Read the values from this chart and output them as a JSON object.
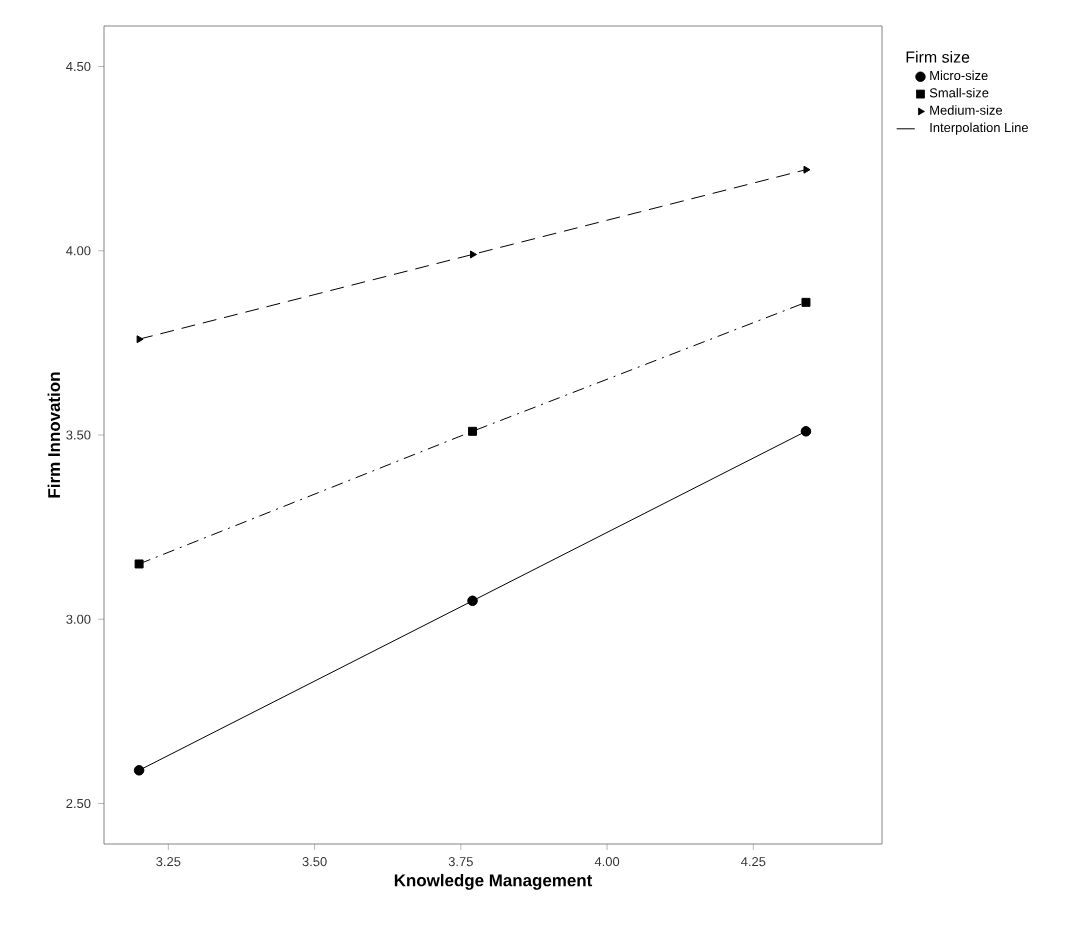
{
  "chart_data": {
    "type": "line",
    "xlabel": "Knowledge Management",
    "ylabel": "Firm Innovation",
    "legend_title": "Firm size",
    "legend": "top right",
    "xlim": [
      3.14,
      4.47
    ],
    "xticks": [
      {
        "value": 3.25,
        "label": "3.25"
      },
      {
        "value": 3.5,
        "label": "3.50"
      },
      {
        "value": 3.75,
        "label": "3.75"
      },
      {
        "value": 4.0,
        "label": "4.00"
      },
      {
        "value": 4.25,
        "label": "4.25"
      }
    ],
    "ylim": [
      2.39,
      4.61
    ],
    "yticks": [
      {
        "value": 2.5,
        "label": "2.50"
      },
      {
        "value": 3.0,
        "label": "3.00"
      },
      {
        "value": 3.5,
        "label": "3.50"
      },
      {
        "value": 4.0,
        "label": "4.00"
      },
      {
        "value": 4.5,
        "label": "4.50"
      }
    ],
    "x": [
      3.2,
      3.77,
      4.34
    ],
    "series": [
      {
        "name": "Micro-size",
        "color": "#000000",
        "marker": "circle",
        "line_style": "solid",
        "values": [
          2.59,
          3.05,
          3.51
        ]
      },
      {
        "name": "Small-size",
        "color": "#000000",
        "marker": "square",
        "line_style": "dashdot",
        "values": [
          3.15,
          3.51,
          3.86
        ]
      },
      {
        "name": "Medium-size",
        "color": "#000000",
        "marker": "triangle",
        "line_style": "dashed",
        "values": [
          3.76,
          3.99,
          4.22
        ]
      }
    ],
    "annotations": [
      "Interpolation Line"
    ]
  }
}
